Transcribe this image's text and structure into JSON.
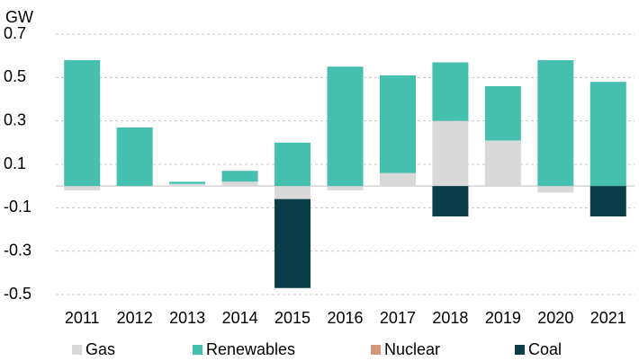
{
  "chart_data": {
    "type": "stacked_bar",
    "y_label": "GW",
    "categories": [
      "2011",
      "2012",
      "2013",
      "2014",
      "2015",
      "2016",
      "2017",
      "2018",
      "2019",
      "2020",
      "2021"
    ],
    "series": [
      {
        "name": "Gas",
        "color": "#d9d9d9",
        "values": [
          -0.02,
          0,
          0.01,
          0.02,
          -0.06,
          -0.02,
          0.06,
          0.3,
          0.21,
          -0.03,
          0
        ]
      },
      {
        "name": "Renewables",
        "color": "#45bfae",
        "values": [
          0.58,
          0.27,
          0.01,
          0.05,
          0.2,
          0.55,
          0.45,
          0.27,
          0.25,
          0.58,
          0.48
        ]
      },
      {
        "name": "Nuclear",
        "color": "#d4967a",
        "values": [
          0,
          0,
          0,
          0,
          0,
          0,
          0,
          0,
          0,
          0,
          0
        ]
      },
      {
        "name": "Coal",
        "color": "#0b3c4a",
        "values": [
          0,
          0,
          0,
          0,
          -0.41,
          0,
          0,
          -0.14,
          0,
          0,
          -0.14
        ]
      }
    ],
    "ylim": [
      -0.5,
      0.7
    ],
    "yticks": [
      -0.5,
      -0.3,
      -0.1,
      0.1,
      0.3,
      0.5,
      0.7
    ],
    "grid": true,
    "legend": "bottom"
  }
}
